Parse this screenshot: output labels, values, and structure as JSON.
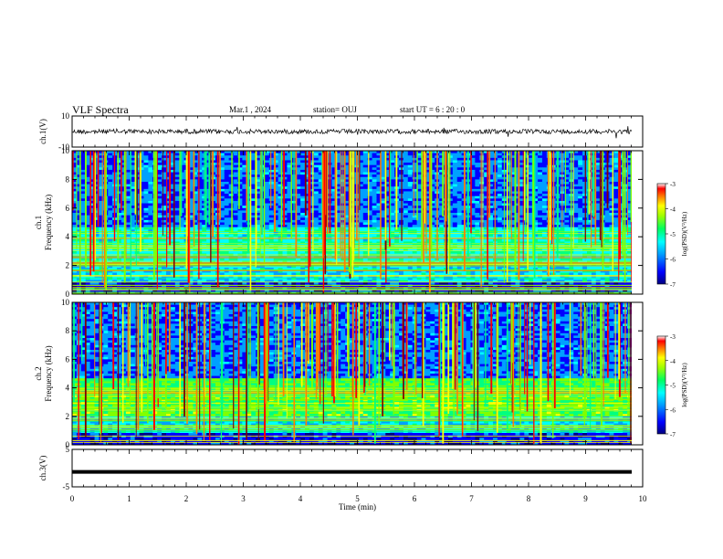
{
  "header": {
    "title": "VLF Spectra",
    "date": "Mar.1  , 2024",
    "station": "station= OUJ",
    "start": "start  UT  =   6  : 20 : 0"
  },
  "chart_data": [
    {
      "type": "line",
      "panel": "ch1-waveform",
      "ylabel": "ch.1(V)",
      "ylim": [
        -10,
        10
      ],
      "yticks": [
        "10",
        "-10"
      ],
      "xlim": [
        0,
        10
      ],
      "series": [
        {
          "values_description_amplitude": 2.5
        }
      ]
    },
    {
      "type": "heatmap",
      "panel": "ch1-spectrogram",
      "ylabel": "ch.1\nFrequency (kHz)",
      "ylim": [
        0,
        10
      ],
      "yticks": [
        "0",
        "2",
        "4",
        "6",
        "8",
        "10"
      ],
      "xlim": [
        0,
        10
      ],
      "colorbar": {
        "label": "log(PSD)(V²/Hz)",
        "range": [
          -7,
          -3
        ],
        "ticks": [
          "-3",
          "-4",
          "-5",
          "-6",
          "-7"
        ]
      }
    },
    {
      "type": "heatmap",
      "panel": "ch2-spectrogram",
      "ylabel": "ch.2\nFrequency (kHz)",
      "ylim": [
        0,
        10
      ],
      "yticks": [
        "0",
        "2",
        "4",
        "6",
        "8",
        "10"
      ],
      "xlim": [
        0,
        10
      ],
      "colorbar": {
        "label": "log(PSD)(V²/Hz)",
        "range": [
          -7,
          -3
        ],
        "ticks": [
          "-3",
          "-4",
          "-5",
          "-6",
          "-7"
        ]
      }
    },
    {
      "type": "line",
      "panel": "ch3-waveform",
      "ylabel": "ch.3(V)",
      "ylim": [
        -5,
        5
      ],
      "yticks": [
        "5",
        "-5"
      ],
      "xlim": [
        0,
        10
      ],
      "series": [
        {
          "constant_value": -1
        }
      ]
    }
  ],
  "xaxis": {
    "label": "Time  (min)",
    "ticks": [
      "0",
      "1",
      "2",
      "3",
      "4",
      "5",
      "6",
      "7",
      "8",
      "9",
      "10"
    ]
  },
  "colors": {
    "colormap": [
      "#000080",
      "#0000ff",
      "#00a0ff",
      "#00ffff",
      "#00ff80",
      "#80ff00",
      "#ffff00",
      "#ff8000",
      "#ff0000",
      "#800000"
    ]
  }
}
